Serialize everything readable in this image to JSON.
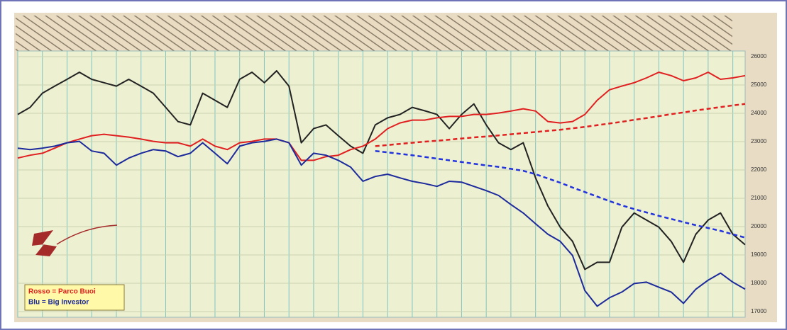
{
  "chart_data": {
    "type": "line",
    "categories": [
      null,
      null,
      null,
      null,
      null,
      null,
      null,
      null,
      null,
      null,
      null,
      null,
      null,
      null,
      null,
      null,
      null,
      null,
      null,
      null,
      null,
      null,
      null,
      null,
      null,
      null,
      null,
      null,
      null,
      null,
      null,
      null,
      null,
      null,
      null,
      null,
      null,
      null,
      null,
      null,
      null,
      null,
      null,
      null,
      null,
      null,
      null,
      null,
      null,
      null,
      null,
      null,
      null,
      null,
      null,
      null,
      null,
      null,
      null,
      null
    ],
    "ylim": [
      16800,
      26200
    ],
    "yticks": [
      17000,
      18000,
      19000,
      20000,
      21000,
      22000,
      23000,
      24000,
      25000,
      26000
    ],
    "grid": true,
    "legend": "lower left",
    "series": [
      {
        "color": "#222222",
        "style": "solid",
        "values": [
          23960,
          24210,
          24710,
          24960,
          25200,
          25450,
          25200,
          25080,
          24960,
          25200,
          24960,
          24710,
          24210,
          23710,
          23590,
          24710,
          24460,
          24210,
          25200,
          25450,
          25080,
          25500,
          24960,
          22960,
          23460,
          23590,
          23210,
          22840,
          22590,
          23590,
          23840,
          23960,
          24210,
          24090,
          23960,
          23460,
          23960,
          24330,
          23590,
          22960,
          22720,
          22960,
          21720,
          20730,
          19980,
          19480,
          18490,
          18740,
          18740,
          19980,
          20480,
          20230,
          19980,
          19480,
          18740,
          19730,
          20230,
          20480,
          19730,
          19360
        ]
      },
      {
        "name": "Rosso = Parco Buoi",
        "color": "#e02020",
        "style": "solid",
        "values": [
          22420,
          22520,
          22590,
          22770,
          22960,
          23090,
          23210,
          23260,
          23210,
          23160,
          23090,
          23010,
          22960,
          22960,
          22840,
          23090,
          22840,
          22720,
          22960,
          23010,
          23090,
          23090,
          22960,
          22340,
          22340,
          22470,
          22520,
          22720,
          22840,
          23090,
          23460,
          23660,
          23760,
          23760,
          23840,
          23890,
          23890,
          23960,
          23960,
          24010,
          24080,
          24160,
          24080,
          23710,
          23660,
          23710,
          23960,
          24460,
          24830,
          24960,
          25080,
          25250,
          25450,
          25330,
          25150,
          25250,
          25450,
          25200,
          25250,
          25330
        ]
      },
      {
        "name": "Blu = Big Investor",
        "color": "#1c2a9c",
        "style": "solid",
        "values": [
          22770,
          22720,
          22770,
          22840,
          22960,
          23010,
          22670,
          22590,
          22170,
          22420,
          22590,
          22720,
          22670,
          22470,
          22590,
          22960,
          22590,
          22220,
          22840,
          22960,
          23010,
          23090,
          22960,
          22170,
          22590,
          22520,
          22340,
          22100,
          21600,
          21770,
          21850,
          21720,
          21600,
          21520,
          21420,
          21600,
          21570,
          21420,
          21270,
          21100,
          20780,
          20480,
          20100,
          19730,
          19480,
          18980,
          17740,
          17190,
          17490,
          17690,
          17990,
          18040,
          17860,
          17690,
          17290,
          17790,
          18110,
          18360,
          18040,
          17790
        ]
      },
      {
        "color": "#e02020",
        "style": "dashed",
        "values": [
          null,
          null,
          null,
          null,
          null,
          null,
          null,
          null,
          null,
          null,
          null,
          null,
          null,
          null,
          null,
          null,
          null,
          null,
          null,
          null,
          null,
          null,
          null,
          null,
          null,
          null,
          null,
          null,
          null,
          22840,
          22880,
          22920,
          22960,
          23000,
          23030,
          23070,
          23110,
          23150,
          23180,
          23220,
          23260,
          23300,
          23340,
          23380,
          23420,
          23470,
          23520,
          23580,
          23640,
          23700,
          23770,
          23830,
          23900,
          23970,
          24030,
          24100,
          24160,
          24220,
          24280,
          24330
        ]
      },
      {
        "color": "#2233dd",
        "style": "dashed",
        "values": [
          null,
          null,
          null,
          null,
          null,
          null,
          null,
          null,
          null,
          null,
          null,
          null,
          null,
          null,
          null,
          null,
          null,
          null,
          null,
          null,
          null,
          null,
          null,
          null,
          null,
          null,
          null,
          null,
          null,
          22670,
          22620,
          22570,
          22520,
          22460,
          22400,
          22340,
          22280,
          22220,
          22160,
          22110,
          22040,
          21970,
          21850,
          21700,
          21550,
          21380,
          21220,
          21060,
          20900,
          20750,
          20620,
          20500,
          20380,
          20270,
          20160,
          20050,
          19950,
          19850,
          19730,
          19610
        ]
      }
    ]
  }
}
